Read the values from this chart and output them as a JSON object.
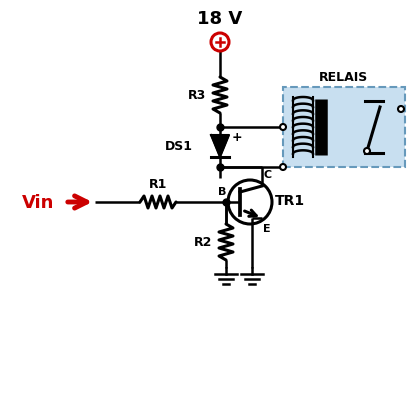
{
  "title": "18 V",
  "bg_color": "#ffffff",
  "line_color": "#000000",
  "relay_bg": "#c8dff0",
  "relay_border": "#6699bb",
  "text_color": "#000000",
  "vin_arrow_color": "#cc0000",
  "supply_color": "#cc0000",
  "component_lw": 2.2,
  "wire_lw": 1.8
}
